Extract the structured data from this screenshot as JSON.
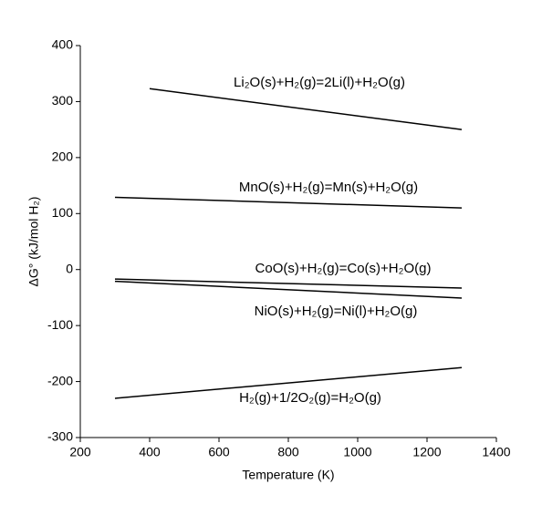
{
  "chart_data": {
    "type": "line",
    "xlabel": "Temperature (K)",
    "ylabel": "ΔG° (kJ/mol H₂)",
    "xlim": [
      200,
      1400
    ],
    "xticks": [
      200,
      400,
      600,
      800,
      1000,
      1200,
      1400
    ],
    "ylim": [
      -300,
      400
    ],
    "yticks": [
      -300,
      -200,
      -100,
      0,
      100,
      200,
      300,
      400
    ],
    "grid": false,
    "series": [
      {
        "name": "Li₂O(s)+H₂(g)=2Li(l)+H₂O(g)",
        "color": "#000000",
        "x": [
          400,
          1300
        ],
        "values": [
          323,
          250
        ]
      },
      {
        "name": "MnO(s)+H₂(g)=Mn(s)+H₂O(g)",
        "color": "#000000",
        "x": [
          300,
          1300
        ],
        "values": [
          129,
          110
        ]
      },
      {
        "name": "CoO(s)+H₂(g)=Co(s)+H₂O(g)",
        "color": "#000000",
        "x": [
          300,
          1300
        ],
        "values": [
          -17,
          -33
        ]
      },
      {
        "name": "NiO(s)+H₂(g)=Ni(l)+H₂O(g)",
        "color": "#000000",
        "x": [
          300,
          1300
        ],
        "values": [
          -21,
          -51
        ]
      },
      {
        "name": "H₂(g)+1/2O₂(g)=H₂O(g)",
        "color": "#000000",
        "x": [
          300,
          1300
        ],
        "values": [
          -230,
          -175
        ]
      }
    ]
  }
}
